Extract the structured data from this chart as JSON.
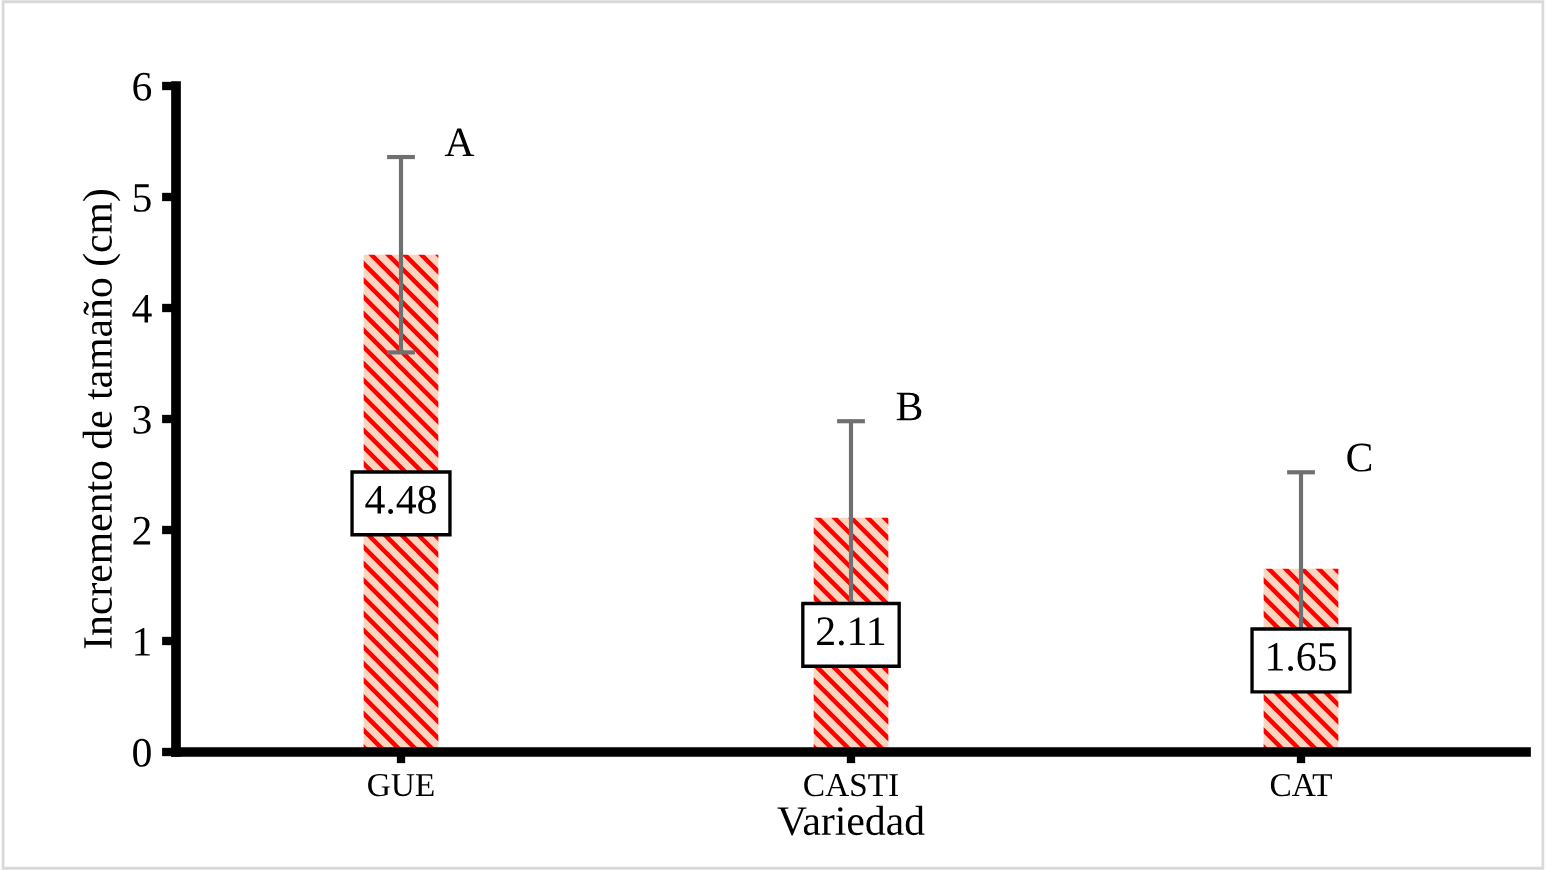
{
  "chart_data": {
    "type": "bar",
    "xlabel": "Variedad",
    "ylabel": "Incremento de tamaño (cm)",
    "categories": [
      "GUE",
      "CASTI",
      "CAT"
    ],
    "values": [
      4.48,
      2.11,
      1.65
    ],
    "errors": [
      0.88,
      0.87,
      0.87
    ],
    "color": "#ff0000",
    "data_labels": true,
    "ylim": [
      0,
      6
    ],
    "yticks": [
      0,
      1,
      2,
      3,
      4,
      5,
      6
    ],
    "grid": false,
    "annotations": [
      "A",
      "B",
      "C"
    ]
  }
}
